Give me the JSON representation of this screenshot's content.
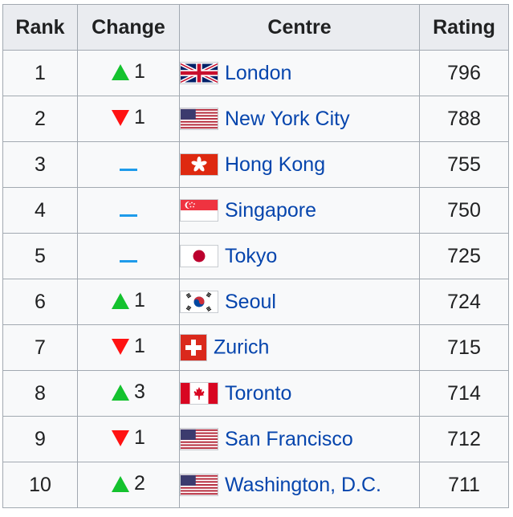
{
  "table": {
    "headers": {
      "rank": "Rank",
      "change": "Change",
      "centre": "Centre",
      "rating": "Rating"
    },
    "rows": [
      {
        "rank": "1",
        "change_dir": "up",
        "change": "1",
        "flag": "gb-flag-icon",
        "centre": "London",
        "rating": "796"
      },
      {
        "rank": "2",
        "change_dir": "down",
        "change": "1",
        "flag": "us-flag-icon",
        "centre": "New York City",
        "rating": "788"
      },
      {
        "rank": "3",
        "change_dir": "none",
        "change": "",
        "flag": "hk-flag-icon",
        "centre": "Hong Kong",
        "rating": "755"
      },
      {
        "rank": "4",
        "change_dir": "none",
        "change": "",
        "flag": "sg-flag-icon",
        "centre": "Singapore",
        "rating": "750"
      },
      {
        "rank": "5",
        "change_dir": "none",
        "change": "",
        "flag": "jp-flag-icon",
        "centre": "Tokyo",
        "rating": "725"
      },
      {
        "rank": "6",
        "change_dir": "up",
        "change": "1",
        "flag": "kr-flag-icon",
        "centre": "Seoul",
        "rating": "724"
      },
      {
        "rank": "7",
        "change_dir": "down",
        "change": "1",
        "flag": "ch-flag-icon",
        "centre": "Zurich",
        "rating": "715"
      },
      {
        "rank": "8",
        "change_dir": "up",
        "change": "3",
        "flag": "ca-flag-icon",
        "centre": "Toronto",
        "rating": "714"
      },
      {
        "rank": "9",
        "change_dir": "down",
        "change": "1",
        "flag": "us-flag-icon",
        "centre": "San Francisco",
        "rating": "712"
      },
      {
        "rank": "10",
        "change_dir": "up",
        "change": "2",
        "flag": "us-flag-icon",
        "centre": "Washington, D.C.",
        "rating": "711"
      }
    ]
  },
  "colors": {
    "up": "#14c22e",
    "down": "#ff1212",
    "none": "#1e9bea",
    "link": "#0645ad"
  }
}
